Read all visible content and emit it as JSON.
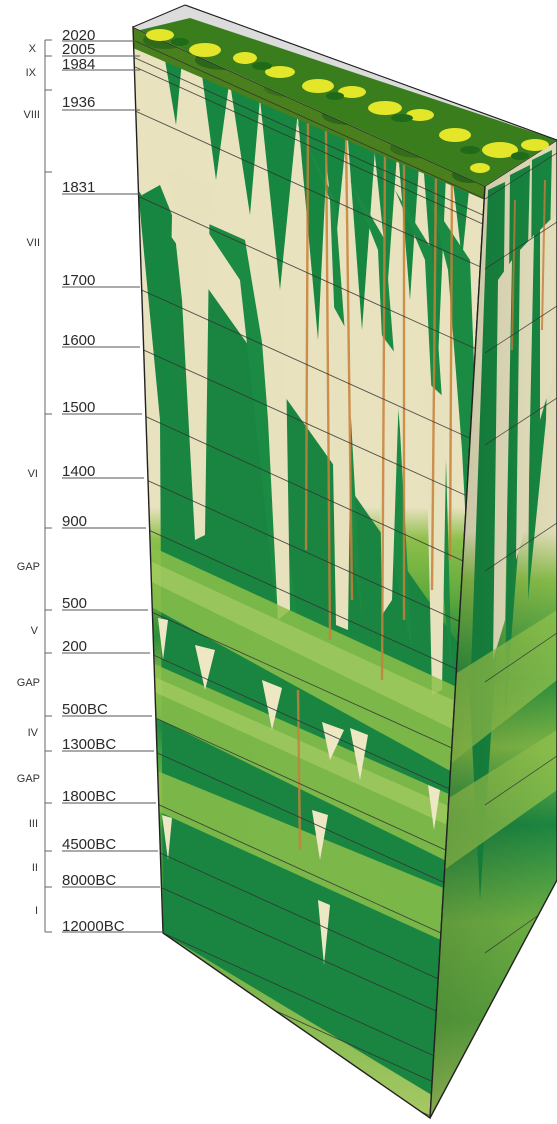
{
  "diagram": {
    "year_labels": [
      "2020",
      "2005",
      "1984",
      "1936",
      "1831",
      "1700",
      "1600",
      "1500",
      "1400",
      "900",
      "500",
      "200",
      "500BC",
      "1300BC",
      "1800BC",
      "4500BC",
      "8000BC",
      "12000BC"
    ],
    "phase_labels": [
      "X",
      "IX",
      "VIII",
      "VII",
      "VI",
      "GAP",
      "V",
      "GAP",
      "IV",
      "GAP",
      "III",
      "II",
      "I"
    ],
    "colors": {
      "sand": "#e8e2bf",
      "forest_dark": "#128140",
      "forest_mid": "#3e9a3c",
      "forest_light": "#8bc048",
      "canopy_yellow": "#ecec28",
      "trunk_orange": "#c8803a",
      "outline": "#222222"
    }
  }
}
